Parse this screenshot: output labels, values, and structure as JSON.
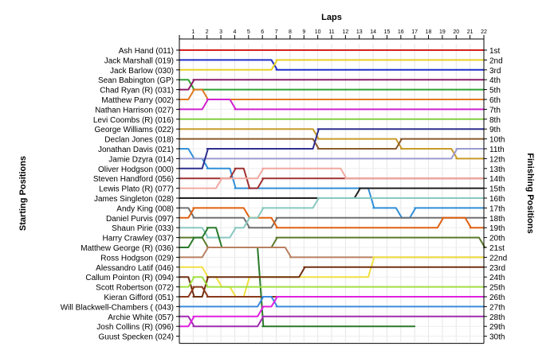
{
  "chart_data": {
    "type": "line",
    "title": "",
    "xlabel": "Laps",
    "ylabel_left": "Starting Positions",
    "ylabel_right": "Finishing Positions",
    "x": [
      0,
      1,
      2,
      3,
      4,
      5,
      6,
      7,
      8,
      9,
      10,
      11,
      12,
      13,
      14,
      15,
      16,
      17,
      18,
      19,
      20,
      21,
      22
    ],
    "x_tick_labels": [
      "1",
      "2",
      "3",
      "4",
      "5",
      "6",
      "7",
      "8",
      "9",
      "10",
      "11",
      "12",
      "13",
      "14",
      "15",
      "16",
      "17",
      "18",
      "19",
      "20",
      "21",
      "22"
    ],
    "position_count": 30,
    "drivers": [
      "Ash Hand (011)",
      "Jack Marshall (019)",
      "Jack Barlow (030)",
      "Sean Babington (GP)",
      "Chad Ryan (R) (031)",
      "Matthew Parry (002)",
      "Nathan Harrison (027)",
      "Levi Coombs  (R) (016)",
      "George Williams (022)",
      "Declan Jones (018)",
      "Jonathan Davis (021)",
      "Jamie Dzyra (014)",
      "Oliver Hodgson (000)",
      "Steven Handford (056)",
      "Lewis Plato (R) (077)",
      "James Singleton (028)",
      "Andy King (008)",
      "Daniel Purvis (097)",
      "Shaun Pirie (033)",
      "Harry Crawley (037)",
      "Matthew George (R) (036)",
      "Ross Hodgson (029)",
      "Alessandro Latif (046)",
      "Callum Pointon  (R) (094)",
      "Scott Robertson (072)",
      "Kieran Gifford (051)",
      "Will Blackwell-Chambers ( (043)",
      "Archie White (057)",
      "Josh Collins (R) (096)",
      "Guust Specken (024)"
    ],
    "finishing_labels": [
      "1st",
      "2nd",
      "3rd",
      "4th",
      "5th",
      "6th",
      "7th",
      "8th",
      "9th",
      "10th",
      "11th",
      "12th",
      "13th",
      "14th",
      "15th",
      "16th",
      "17th",
      "18th",
      "19th",
      "20th",
      "21st",
      "22nd",
      "23rd",
      "24th",
      "25th",
      "26th",
      "27th",
      "28th",
      "29th",
      "30th"
    ],
    "ylim": [
      1,
      30
    ],
    "grid": true,
    "series": [
      {
        "color": "#d42020",
        "positions": [
          1,
          1,
          1,
          1,
          1,
          1,
          1,
          1,
          1,
          1,
          1,
          1,
          1,
          1,
          1,
          1,
          1,
          1,
          1,
          1,
          1,
          1,
          1
        ]
      },
      {
        "color": "#1f2fc8",
        "positions": [
          2,
          2,
          2,
          2,
          2,
          2,
          2,
          3,
          3,
          3,
          3,
          3,
          3,
          3,
          3,
          3,
          3,
          3,
          3,
          3,
          3,
          3,
          3
        ]
      },
      {
        "color": "#e8d020",
        "positions": [
          3,
          3,
          3,
          3,
          3,
          3,
          3,
          2,
          2,
          2,
          2,
          2,
          2,
          2,
          2,
          2,
          2,
          2,
          2,
          2,
          2,
          2,
          2
        ]
      },
      {
        "color": "#2fa02f",
        "positions": [
          4,
          5,
          5,
          5,
          5,
          5,
          5,
          5,
          5,
          5,
          5,
          5,
          5,
          5,
          5,
          5,
          5,
          5,
          5,
          5,
          5,
          5,
          5
        ]
      },
      {
        "color": "#8c1a6a",
        "positions": [
          5,
          4,
          4,
          4,
          4,
          4,
          4,
          4,
          4,
          4,
          4,
          4,
          4,
          4,
          4,
          4,
          4,
          4,
          4,
          4,
          4,
          4,
          4
        ]
      },
      {
        "color": "#e07820",
        "positions": [
          6,
          5,
          6,
          6,
          6,
          6,
          6,
          6,
          6,
          6,
          6,
          6,
          6,
          6,
          6,
          6,
          6,
          6,
          6,
          6,
          6,
          6,
          6
        ]
      },
      {
        "color": "#d020d0",
        "positions": [
          7,
          7,
          6,
          6,
          7,
          7,
          7,
          7,
          7,
          7,
          7,
          7,
          7,
          7,
          7,
          7,
          7,
          7,
          7,
          7,
          7,
          7,
          7
        ]
      },
      {
        "color": "#80d040",
        "positions": [
          8,
          8,
          8,
          8,
          8,
          8,
          8,
          8,
          8,
          8,
          8,
          8,
          8,
          8,
          8,
          8,
          8,
          8,
          8,
          8,
          8,
          8,
          8
        ]
      },
      {
        "color": "#c89a2a",
        "positions": [
          9,
          9,
          9,
          9,
          9,
          9,
          9,
          9,
          9,
          9,
          10,
          10,
          10,
          10,
          10,
          10,
          11,
          11,
          11,
          11,
          12,
          12,
          12
        ]
      },
      {
        "color": "#8b5a2b",
        "positions": [
          10,
          10,
          10,
          10,
          10,
          10,
          10,
          10,
          10,
          10,
          11,
          11,
          11,
          11,
          11,
          11,
          10,
          10,
          10,
          10,
          10,
          10,
          10
        ]
      },
      {
        "color": "#2f8fd8",
        "positions": [
          11,
          12,
          13,
          13,
          15,
          15,
          15,
          15,
          15,
          15,
          15,
          15,
          15,
          15,
          17,
          17,
          18,
          17,
          17,
          17,
          17,
          17,
          17
        ]
      },
      {
        "color": "#9a9ad0",
        "positions": [
          12,
          12,
          12,
          12,
          12,
          12,
          12,
          12,
          12,
          12,
          12,
          12,
          12,
          12,
          12,
          12,
          12,
          12,
          12,
          12,
          11,
          11,
          11
        ]
      },
      {
        "color": "#2f2f8f",
        "positions": [
          13,
          13,
          11,
          11,
          11,
          11,
          11,
          11,
          11,
          11,
          9,
          9,
          9,
          9,
          9,
          9,
          9,
          9,
          9,
          9,
          9,
          9,
          9
        ]
      },
      {
        "color": "#a03030",
        "positions": [
          14,
          14,
          14,
          14,
          13,
          15,
          14,
          14,
          14,
          14,
          14,
          14,
          14,
          14,
          14,
          14,
          14,
          14,
          14,
          14,
          14,
          14,
          14
        ]
      },
      {
        "color": "#f0a8a0",
        "positions": [
          15,
          15,
          15,
          14,
          14,
          14,
          13,
          13,
          13,
          13,
          13,
          13,
          14,
          14,
          14,
          14,
          14,
          14,
          14,
          14,
          14,
          14,
          14
        ]
      },
      {
        "color": "#202020",
        "positions": [
          16,
          16,
          16,
          16,
          16,
          16,
          16,
          16,
          16,
          16,
          16,
          16,
          16,
          15,
          15,
          15,
          15,
          15,
          15,
          15,
          15,
          15,
          15
        ]
      },
      {
        "color": "#707070",
        "positions": [
          17,
          18,
          18,
          18,
          18,
          19,
          19,
          18,
          18,
          18,
          18,
          18,
          18,
          18,
          18,
          18,
          18,
          18,
          18,
          18,
          18,
          18,
          18
        ]
      },
      {
        "color": "#e06010",
        "positions": [
          18,
          17,
          17,
          17,
          17,
          18,
          18,
          19,
          19,
          19,
          19,
          19,
          19,
          19,
          19,
          19,
          19,
          19,
          19,
          18,
          18,
          19,
          19
        ]
      },
      {
        "color": "#88c8c0",
        "positions": [
          19,
          19,
          20,
          20,
          19,
          18,
          17,
          17,
          17,
          17,
          16,
          16,
          16,
          16,
          16,
          16,
          16,
          16,
          16,
          16,
          16,
          16,
          16
        ]
      },
      {
        "color": "#5a7a2a",
        "positions": [
          20,
          20,
          21,
          21,
          21,
          21,
          21,
          20,
          20,
          20,
          20,
          20,
          20,
          20,
          20,
          20,
          20,
          20,
          20,
          20,
          20,
          20,
          21
        ]
      },
      {
        "color": "#2a7a2a",
        "positions": [
          21,
          20,
          19,
          21,
          21,
          21,
          29,
          29,
          29,
          29,
          29,
          29,
          29,
          29,
          29,
          29,
          29,
          29
        ]
      },
      {
        "color": "#b88060",
        "positions": [
          22,
          22,
          21,
          21,
          21,
          21,
          21,
          21,
          22,
          22,
          22,
          22,
          22,
          22,
          22,
          22,
          22,
          22,
          22,
          22,
          22,
          22,
          22
        ]
      },
      {
        "color": "#f0e040",
        "positions": [
          23,
          23,
          24,
          25,
          26,
          24,
          24,
          24,
          24,
          24,
          24,
          24,
          24,
          24,
          22,
          22,
          22,
          22,
          22,
          22,
          22,
          22,
          22
        ]
      },
      {
        "color": "#703010",
        "positions": [
          24,
          26,
          24,
          24,
          24,
          24,
          24,
          24,
          24,
          23,
          23,
          23,
          23,
          23,
          23,
          23,
          23,
          23,
          23,
          23,
          23,
          23,
          23
        ]
      },
      {
        "color": "#a0e040",
        "positions": [
          25,
          24,
          25,
          25,
          25,
          25,
          25,
          25,
          25,
          25,
          25,
          25,
          25,
          25,
          25,
          25,
          25,
          25,
          25,
          25,
          25,
          25,
          25
        ]
      },
      {
        "color": "#8a3a1a",
        "positions": [
          26,
          25,
          26,
          26,
          26,
          26,
          26,
          26,
          26,
          26,
          26,
          26,
          26,
          26,
          26,
          26,
          26,
          26,
          26,
          26,
          26,
          26,
          26
        ]
      },
      {
        "color": "#3a8ae0",
        "positions": [
          27,
          27,
          27,
          27,
          27,
          27,
          26,
          27,
          27,
          27,
          27,
          27,
          27,
          27,
          27,
          27,
          27,
          27,
          27,
          27,
          27,
          27,
          27
        ]
      },
      {
        "color": "#a02ab0",
        "positions": [
          28,
          29,
          29,
          29,
          29,
          29,
          28,
          28,
          28,
          28,
          28,
          28,
          28,
          28,
          28,
          28,
          28,
          28,
          28,
          28,
          28,
          28,
          28
        ]
      },
      {
        "color": "#e020e0",
        "positions": [
          29,
          28,
          28,
          28,
          28,
          28,
          27,
          26,
          26,
          26,
          26,
          26,
          26,
          26,
          26,
          26,
          26,
          26,
          26,
          26,
          26,
          26,
          26
        ]
      }
    ]
  }
}
